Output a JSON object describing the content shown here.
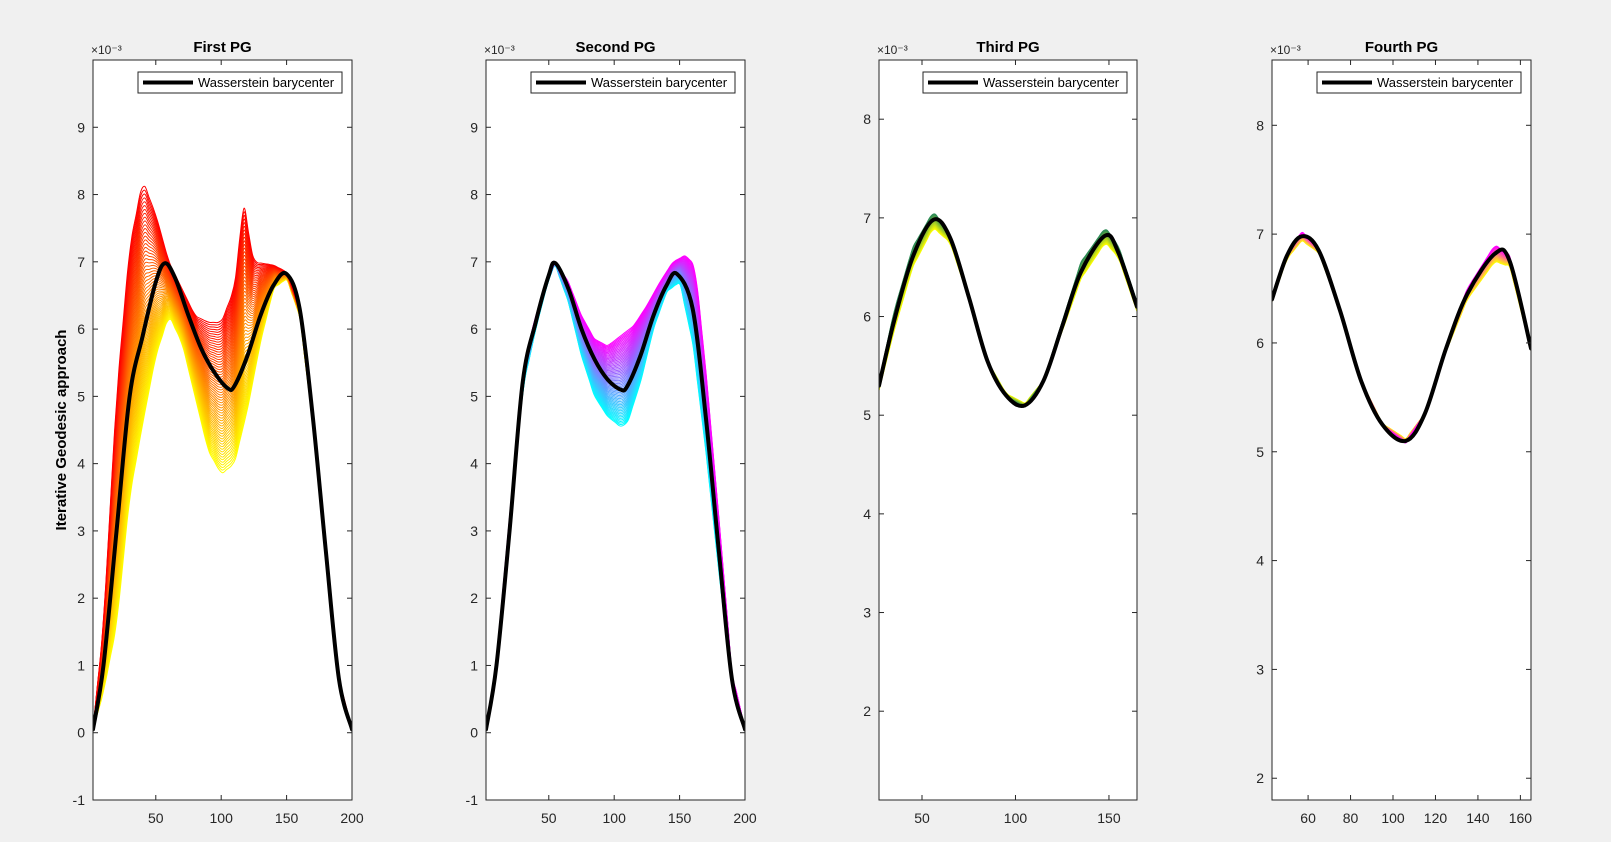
{
  "figure": {
    "background": "#f0f0f0"
  },
  "ylabel_text": "Iterative Geodesic approach",
  "chart_data": [
    {
      "type": "line",
      "title": "First PG",
      "ylabel": "Iterative Geodesic approach",
      "exponent_label": "×10⁻³",
      "xlim": [
        2,
        200
      ],
      "ylim": [
        -1,
        10
      ],
      "xticks": [
        50,
        100,
        150,
        200
      ],
      "yticks": [
        -1,
        0,
        1,
        2,
        3,
        4,
        5,
        6,
        7,
        8,
        9
      ],
      "legend": {
        "label": "Wasserstein barycenter",
        "placement": "top-right"
      },
      "curve_family": {
        "colors": [
          "#ffff00",
          "#ff0000"
        ],
        "count": 60,
        "description_only": true
      },
      "series": [
        {
          "name": "Wasserstein barycenter",
          "color": "#000000",
          "x": [
            2,
            10,
            20,
            30,
            40,
            50,
            57,
            65,
            75,
            85,
            95,
            105,
            110,
            120,
            130,
            140,
            150,
            160,
            170,
            180,
            190,
            200
          ],
          "y": [
            0.05,
            1.0,
            3.0,
            5.0,
            5.9,
            6.7,
            6.98,
            6.75,
            6.2,
            5.7,
            5.35,
            5.12,
            5.15,
            5.6,
            6.2,
            6.65,
            6.82,
            6.3,
            4.7,
            2.7,
            0.8,
            0.05
          ]
        }
      ],
      "upper_envelope": {
        "x": [
          2,
          10,
          20,
          30,
          40,
          50,
          60,
          70,
          80,
          90,
          100,
          110,
          117,
          125,
          140,
          150,
          160,
          170,
          180,
          190,
          200
        ],
        "y": [
          0.05,
          1.6,
          5.0,
          7.2,
          8.2,
          7.7,
          7.0,
          6.6,
          6.2,
          6.1,
          6.1,
          6.6,
          7.85,
          7.0,
          6.95,
          6.85,
          6.3,
          4.7,
          2.7,
          0.8,
          0.05
        ]
      },
      "lower_envelope": {
        "x": [
          2,
          10,
          20,
          30,
          40,
          50,
          60,
          70,
          80,
          90,
          100,
          110,
          120,
          130,
          140,
          150,
          160,
          170,
          180,
          190,
          200
        ],
        "y": [
          0.05,
          0.6,
          1.6,
          3.5,
          4.6,
          5.6,
          6.2,
          5.8,
          5.0,
          4.2,
          3.85,
          4.0,
          4.8,
          5.8,
          6.6,
          6.75,
          6.2,
          4.6,
          2.6,
          0.7,
          0.05
        ]
      }
    },
    {
      "type": "line",
      "title": "Second PG",
      "exponent_label": "×10⁻³",
      "xlim": [
        2,
        200
      ],
      "ylim": [
        -1,
        10
      ],
      "xticks": [
        50,
        100,
        150,
        200
      ],
      "yticks": [
        -1,
        0,
        1,
        2,
        3,
        4,
        5,
        6,
        7,
        8,
        9
      ],
      "legend": {
        "label": "Wasserstein barycenter",
        "placement": "top-right"
      },
      "curve_family": {
        "colors": [
          "#00ffff",
          "#ff00ff"
        ],
        "count": 60,
        "description_only": true
      },
      "series": [
        {
          "name": "Wasserstein barycenter",
          "color": "#000000",
          "x": [
            2,
            10,
            20,
            30,
            40,
            50,
            55,
            65,
            75,
            85,
            95,
            105,
            110,
            120,
            130,
            140,
            148,
            160,
            170,
            180,
            190,
            200
          ],
          "y": [
            0.05,
            1.0,
            3.0,
            5.2,
            6.1,
            6.8,
            6.98,
            6.6,
            6.0,
            5.55,
            5.25,
            5.1,
            5.15,
            5.6,
            6.2,
            6.65,
            6.82,
            6.3,
            4.7,
            2.7,
            0.8,
            0.05
          ]
        }
      ],
      "upper_envelope": {
        "x": [
          2,
          10,
          20,
          30,
          40,
          50,
          55,
          65,
          75,
          85,
          95,
          105,
          115,
          125,
          135,
          145,
          155,
          162,
          170,
          180,
          190,
          200
        ],
        "y": [
          0.05,
          1.1,
          3.2,
          5.4,
          6.2,
          6.8,
          7.0,
          6.7,
          6.2,
          5.85,
          5.75,
          5.9,
          6.05,
          6.35,
          6.7,
          7.0,
          7.1,
          6.9,
          5.4,
          3.2,
          0.9,
          0.05
        ]
      },
      "lower_envelope": {
        "x": [
          2,
          10,
          20,
          30,
          40,
          50,
          55,
          65,
          75,
          85,
          95,
          105,
          110,
          120,
          130,
          140,
          150,
          160,
          170,
          180,
          190,
          200
        ],
        "y": [
          0.05,
          0.9,
          2.9,
          5.1,
          6.0,
          6.75,
          6.95,
          6.4,
          5.6,
          5.0,
          4.7,
          4.55,
          4.6,
          5.2,
          6.0,
          6.55,
          6.7,
          5.8,
          4.2,
          2.4,
          0.7,
          0.05
        ]
      }
    },
    {
      "type": "line",
      "title": "Third PG",
      "exponent_label": "×10⁻³",
      "xlim": [
        27,
        165
      ],
      "ylim": [
        1.1,
        8.6
      ],
      "xticks": [
        50,
        100,
        150
      ],
      "yticks": [
        2,
        3,
        4,
        5,
        6,
        7,
        8
      ],
      "legend": {
        "label": "Wasserstein barycenter",
        "placement": "top-right"
      },
      "curve_family": {
        "colors": [
          "#ffff00",
          "#2e8b57"
        ],
        "count": 30,
        "description_only": true
      },
      "series": [
        {
          "name": "Wasserstein barycenter",
          "color": "#000000",
          "x": [
            27,
            35,
            45,
            56,
            65,
            75,
            85,
            95,
            105,
            115,
            125,
            135,
            148,
            155,
            165
          ],
          "y": [
            5.3,
            5.95,
            6.6,
            6.98,
            6.8,
            6.2,
            5.55,
            5.2,
            5.1,
            5.35,
            5.9,
            6.45,
            6.82,
            6.65,
            6.1
          ]
        }
      ],
      "upper_envelope": {
        "x": [
          27,
          35,
          45,
          56,
          65,
          75,
          85,
          95,
          105,
          115,
          125,
          135,
          148,
          155,
          165
        ],
        "y": [
          5.35,
          6.05,
          6.7,
          7.06,
          6.85,
          6.22,
          5.55,
          5.18,
          5.08,
          5.35,
          5.95,
          6.55,
          6.9,
          6.72,
          6.15
        ]
      },
      "lower_envelope": {
        "x": [
          27,
          35,
          45,
          56,
          65,
          75,
          85,
          95,
          105,
          115,
          125,
          135,
          148,
          155,
          165
        ],
        "y": [
          5.25,
          5.85,
          6.5,
          6.9,
          6.75,
          6.18,
          5.55,
          5.22,
          5.12,
          5.35,
          5.85,
          6.38,
          6.75,
          6.6,
          6.05
        ]
      }
    },
    {
      "type": "line",
      "title": "Fourth PG",
      "exponent_label": "×10⁻³",
      "xlim": [
        43,
        165
      ],
      "ylim": [
        1.8,
        8.6
      ],
      "xticks": [
        60,
        80,
        100,
        120,
        140,
        160
      ],
      "yticks": [
        2,
        3,
        4,
        5,
        6,
        7,
        8
      ],
      "legend": {
        "label": "Wasserstein barycenter",
        "placement": "top-right"
      },
      "curve_family": {
        "colors": [
          "#ffff00",
          "#ff00ff"
        ],
        "count": 30,
        "description_only": true
      },
      "series": [
        {
          "name": "Wasserstein barycenter",
          "color": "#000000",
          "x": [
            43,
            50,
            57,
            65,
            75,
            85,
            95,
            106,
            115,
            125,
            135,
            148,
            155,
            165
          ],
          "y": [
            6.4,
            6.8,
            6.98,
            6.85,
            6.3,
            5.65,
            5.25,
            5.1,
            5.35,
            5.95,
            6.45,
            6.82,
            6.75,
            5.95
          ]
        }
      ],
      "upper_envelope": {
        "x": [
          43,
          50,
          57,
          65,
          75,
          85,
          95,
          106,
          115,
          125,
          135,
          148,
          155,
          165
        ],
        "y": [
          6.42,
          6.83,
          7.02,
          6.87,
          6.3,
          5.65,
          5.24,
          5.08,
          5.35,
          5.98,
          6.5,
          6.9,
          6.8,
          5.97
        ]
      },
      "lower_envelope": {
        "x": [
          43,
          50,
          57,
          65,
          75,
          85,
          95,
          106,
          115,
          125,
          135,
          148,
          155,
          165
        ],
        "y": [
          6.38,
          6.77,
          6.94,
          6.83,
          6.3,
          5.65,
          5.26,
          5.12,
          5.35,
          5.92,
          6.4,
          6.75,
          6.7,
          5.93
        ]
      }
    }
  ]
}
